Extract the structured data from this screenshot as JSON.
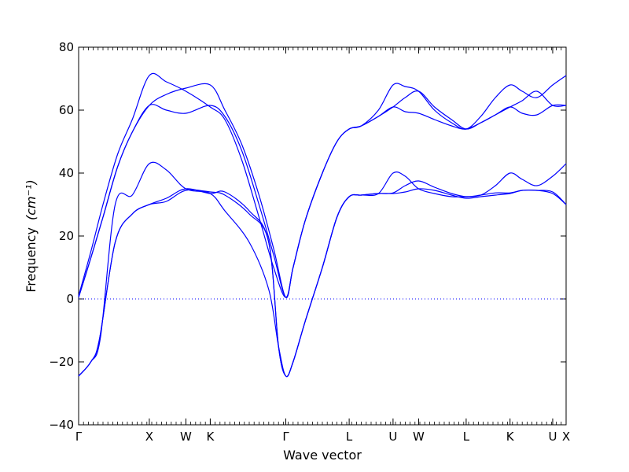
{
  "chart_data": {
    "type": "line",
    "title": "",
    "xlabel": "Wave vector",
    "ylabel": "Frequency",
    "ylabel_unit": "(cm⁻¹)",
    "ylim": [
      -40,
      80
    ],
    "yticks": [
      -40,
      -20,
      0,
      20,
      40,
      60,
      80
    ],
    "ytick_labels": [
      "−40",
      "−20",
      "0",
      "20",
      "40",
      "60",
      "80"
    ],
    "xlim": [
      0,
      20
    ],
    "xticks": [
      {
        "x": 0.0,
        "label": "Γ"
      },
      {
        "x": 2.9,
        "label": "X"
      },
      {
        "x": 4.4,
        "label": "W"
      },
      {
        "x": 5.4,
        "label": "K"
      },
      {
        "x": 8.5,
        "label": "Γ"
      },
      {
        "x": 11.1,
        "label": "L"
      },
      {
        "x": 12.9,
        "label": "U"
      },
      {
        "x": 13.95,
        "label": "W"
      },
      {
        "x": 15.9,
        "label": "L"
      },
      {
        "x": 17.7,
        "label": "K"
      },
      {
        "x": 19.45,
        "label": "U"
      },
      {
        "x": 20.0,
        "label": "X"
      }
    ],
    "zero_line": true,
    "grid": false,
    "color": "#0000ff",
    "series": [
      {
        "x": [
          0,
          0.5,
          0.9,
          1.5,
          2.2,
          2.9,
          3.6,
          4.4,
          5.4,
          6.0,
          7.0,
          7.8,
          8.2,
          8.5,
          8.8,
          9.3,
          10.0,
          10.6,
          11.1,
          11.6,
          12.3,
          12.9,
          13.4,
          13.95,
          14.6,
          15.3,
          15.9,
          16.5,
          17.1,
          17.7,
          18.2,
          18.8,
          19.45,
          20.0
        ],
        "y": [
          -24.5,
          -20,
          -12,
          30,
          33,
          43,
          41,
          35,
          33.5,
          28,
          18,
          3,
          -15,
          -24.5,
          -20,
          -7,
          10,
          26,
          32.5,
          33,
          33.5,
          40,
          39,
          35,
          33.5,
          32.5,
          32.5,
          33,
          36,
          40,
          38,
          36,
          39,
          43
        ]
      },
      {
        "x": [
          0,
          0.5,
          0.85,
          1.5,
          2.2,
          2.9,
          3.6,
          4.4,
          5.4,
          6.0,
          7.0,
          7.8,
          8.2,
          8.5,
          8.8,
          9.3,
          10.0,
          10.6,
          11.1,
          11.6,
          12.3,
          12.9,
          13.4,
          13.95,
          14.6,
          15.3,
          15.9,
          16.5,
          17.1,
          17.7,
          18.2,
          18.8,
          19.45,
          20.0
        ],
        "y": [
          -24.5,
          -20,
          -13,
          18,
          27,
          30,
          32,
          35,
          33.5,
          34,
          28,
          18,
          -15,
          -24.5,
          -20,
          -7,
          10,
          26,
          32.5,
          33,
          33.5,
          33.7,
          36,
          37.5,
          35.5,
          33.5,
          32.5,
          33,
          33.7,
          33.7,
          34.5,
          34.5,
          33.5,
          30
        ]
      },
      {
        "x": [
          0,
          0.5,
          0.85,
          1.5,
          2.2,
          2.9,
          3.6,
          4.4,
          5.4,
          6.0,
          7.0,
          7.8,
          8.2,
          8.5,
          8.8,
          9.3,
          10.0,
          10.6,
          11.1,
          11.6,
          12.3,
          12.9,
          13.4,
          13.95,
          14.6,
          15.3,
          15.9,
          16.5,
          17.1,
          17.7,
          18.2,
          18.8,
          19.45,
          20.0
        ],
        "y": [
          -24.5,
          -20,
          -13,
          18,
          27,
          30,
          31,
          34.5,
          34,
          33,
          27,
          18,
          -15,
          -24.5,
          -20,
          -7,
          10,
          26,
          32.5,
          33,
          33.5,
          33.5,
          34,
          35,
          34.5,
          33,
          32,
          32.5,
          33,
          33.5,
          34.5,
          34.5,
          34,
          30
        ]
      },
      {
        "x": [
          0,
          0.5,
          1.0,
          1.6,
          2.2,
          2.9,
          3.6,
          4.4,
          5.4,
          6.0,
          6.7,
          7.4,
          8.0,
          8.5,
          8.8,
          9.3,
          10.0,
          10.6,
          11.1,
          11.6,
          12.3,
          12.9,
          13.4,
          13.95,
          14.6,
          15.3,
          15.9,
          16.5,
          17.1,
          17.7,
          18.2,
          18.8,
          19.45,
          20.0
        ],
        "y": [
          1,
          15,
          30,
          46,
          57,
          71,
          69,
          66,
          61,
          57,
          44,
          26,
          10,
          0.5,
          10,
          25,
          40,
          50,
          54,
          55,
          60,
          68,
          67.5,
          66,
          60,
          56,
          54,
          58,
          64,
          68,
          66,
          64,
          68,
          71
        ]
      },
      {
        "x": [
          0,
          0.5,
          1.0,
          1.6,
          2.2,
          2.9,
          3.6,
          4.4,
          5.4,
          6.0,
          6.7,
          7.4,
          8.0,
          8.5,
          8.8,
          9.3,
          10.0,
          10.6,
          11.1,
          11.6,
          12.3,
          12.9,
          13.4,
          13.95,
          14.6,
          15.3,
          15.9,
          16.5,
          17.1,
          17.7,
          18.2,
          18.8,
          19.45,
          20.0
        ],
        "y": [
          0.5,
          13,
          26,
          42,
          53,
          61.5,
          65,
          67,
          68,
          60,
          49,
          33,
          16,
          0.5,
          10,
          25,
          40,
          50,
          54,
          55,
          58,
          61,
          64,
          66,
          61,
          57,
          54,
          56,
          58.5,
          61,
          63,
          66,
          61.5,
          61.5
        ]
      },
      {
        "x": [
          0,
          0.5,
          1.0,
          1.6,
          2.2,
          2.9,
          3.6,
          4.4,
          5.4,
          6.0,
          6.7,
          7.4,
          8.0,
          8.5,
          8.8,
          9.3,
          10.0,
          10.6,
          11.1,
          11.6,
          12.3,
          12.9,
          13.4,
          13.95,
          14.6,
          15.3,
          15.9,
          16.5,
          17.1,
          17.7,
          18.2,
          18.8,
          19.45,
          20.0
        ],
        "y": [
          0.5,
          13,
          26,
          42,
          53,
          61.5,
          60,
          59,
          61.5,
          58,
          47,
          30,
          14,
          0.5,
          10,
          25,
          40,
          50,
          54,
          55,
          58,
          61,
          59.5,
          59,
          57,
          55,
          54,
          56,
          58.5,
          61,
          59,
          58.5,
          61.5,
          61.5
        ]
      }
    ]
  }
}
